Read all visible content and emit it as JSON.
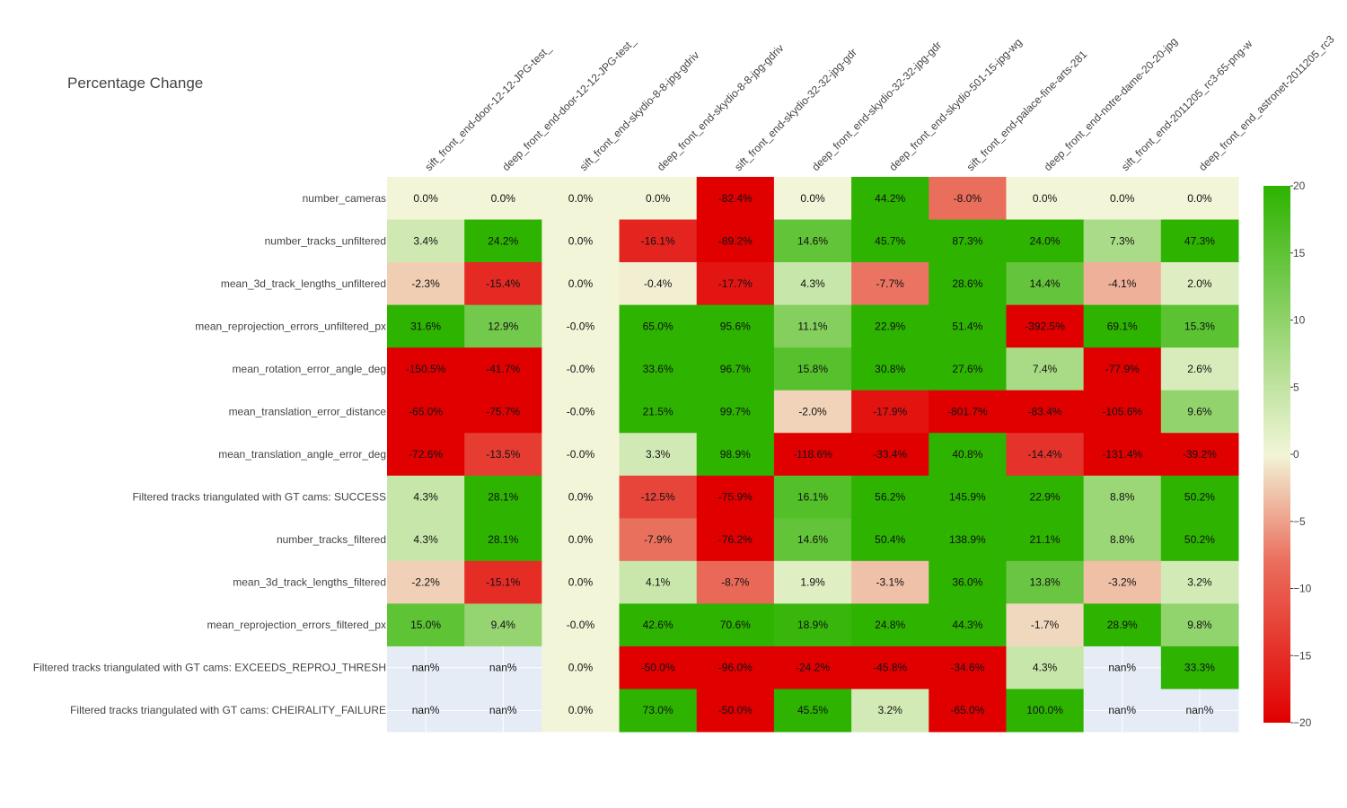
{
  "chart_data": {
    "type": "heatmap",
    "title": "Percentage Change",
    "columns": [
      "sift_front_end-door-12-12-JPG-test_",
      "deep_front_end-door-12-12-JPG-test_",
      "sift_front_end-skydio-8-8-jpg-gdriv",
      "deep_front_end-skydio-8-8-jpg-gdriv",
      "sift_front_end-skydio-32-32-jpg-gdr",
      "deep_front_end-skydio-32-32-jpg-gdr",
      "deep_front_end-skydio-501-15-jpg-wg",
      "sift_front_end-palace-fine-arts-281",
      "deep_front_end-notre-dame-20-20-jpg",
      "sift_front_end-2011205_rc3-65-png-w",
      "deep_front_end_astronet-2011205_rc3"
    ],
    "rows": [
      "number_cameras",
      "number_tracks_unfiltered",
      "mean_3d_track_lengths_unfiltered",
      "mean_reprojection_errors_unfiltered_px",
      "mean_rotation_error_angle_deg",
      "mean_translation_error_distance",
      "mean_translation_angle_error_deg",
      "Filtered tracks triangulated with GT cams: SUCCESS",
      "number_tracks_filtered",
      "mean_3d_track_lengths_filtered",
      "mean_reprojection_errors_filtered_px",
      "Filtered tracks triangulated with GT cams: EXCEEDS_REPROJ_THRESH",
      "Filtered tracks triangulated with GT cams: CHEIRALITY_FAILURE"
    ],
    "values": [
      [
        0.0,
        0.0,
        0.0,
        0.0,
        -82.4,
        0.0,
        44.2,
        -8.0,
        0.0,
        0.0,
        0.0
      ],
      [
        3.4,
        24.2,
        0.0,
        -16.1,
        -89.2,
        14.6,
        45.7,
        87.3,
        24.0,
        7.3,
        47.3
      ],
      [
        -2.3,
        -15.4,
        0.0,
        -0.4,
        -17.7,
        4.3,
        -7.7,
        28.6,
        14.4,
        -4.1,
        2.0
      ],
      [
        31.6,
        12.9,
        -0.0,
        65.0,
        95.6,
        11.1,
        22.9,
        51.4,
        -392.5,
        69.1,
        15.3
      ],
      [
        -150.5,
        -41.7,
        -0.0,
        33.6,
        96.7,
        15.8,
        30.8,
        27.6,
        7.4,
        -77.9,
        2.6
      ],
      [
        -65.0,
        -75.7,
        -0.0,
        21.5,
        99.7,
        -2.0,
        -17.9,
        -801.7,
        -83.4,
        -105.6,
        9.6
      ],
      [
        -72.6,
        -13.5,
        -0.0,
        3.3,
        98.9,
        -118.6,
        -33.4,
        40.8,
        -14.4,
        -131.4,
        -39.2
      ],
      [
        4.3,
        28.1,
        0.0,
        -12.5,
        -75.9,
        16.1,
        56.2,
        145.9,
        22.9,
        8.8,
        50.2
      ],
      [
        4.3,
        28.1,
        0.0,
        -7.9,
        -76.2,
        14.6,
        50.4,
        138.9,
        21.1,
        8.8,
        50.2
      ],
      [
        -2.2,
        -15.1,
        0.0,
        4.1,
        -8.7,
        1.9,
        -3.1,
        36.0,
        13.8,
        -3.2,
        3.2
      ],
      [
        15.0,
        9.4,
        -0.0,
        42.6,
        70.6,
        18.9,
        24.8,
        44.3,
        -1.7,
        28.9,
        9.8
      ],
      [
        null,
        null,
        0.0,
        -50.0,
        -96.0,
        -24.2,
        -45.8,
        -34.6,
        4.3,
        null,
        33.3
      ],
      [
        null,
        null,
        0.0,
        73.0,
        -50.0,
        45.5,
        3.2,
        -65.0,
        100.0,
        null,
        null
      ]
    ],
    "cell_text": [
      [
        "0.0%",
        "0.0%",
        "0.0%",
        "0.0%",
        "-82.4%",
        "0.0%",
        "44.2%",
        "-8.0%",
        "0.0%",
        "0.0%",
        "0.0%"
      ],
      [
        "3.4%",
        "24.2%",
        "0.0%",
        "-16.1%",
        "-89.2%",
        "14.6%",
        "45.7%",
        "87.3%",
        "24.0%",
        "7.3%",
        "47.3%"
      ],
      [
        "-2.3%",
        "-15.4%",
        "0.0%",
        "-0.4%",
        "-17.7%",
        "4.3%",
        "-7.7%",
        "28.6%",
        "14.4%",
        "-4.1%",
        "2.0%"
      ],
      [
        "31.6%",
        "12.9%",
        "-0.0%",
        "65.0%",
        "95.6%",
        "11.1%",
        "22.9%",
        "51.4%",
        "-392.5%",
        "69.1%",
        "15.3%"
      ],
      [
        "-150.5%",
        "-41.7%",
        "-0.0%",
        "33.6%",
        "96.7%",
        "15.8%",
        "30.8%",
        "27.6%",
        "7.4%",
        "-77.9%",
        "2.6%"
      ],
      [
        "-65.0%",
        "-75.7%",
        "-0.0%",
        "21.5%",
        "99.7%",
        "-2.0%",
        "-17.9%",
        "-801.7%",
        "-83.4%",
        "-105.6%",
        "9.6%"
      ],
      [
        "-72.6%",
        "-13.5%",
        "-0.0%",
        "3.3%",
        "98.9%",
        "-118.6%",
        "-33.4%",
        "40.8%",
        "-14.4%",
        "-131.4%",
        "-39.2%"
      ],
      [
        "4.3%",
        "28.1%",
        "0.0%",
        "-12.5%",
        "-75.9%",
        "16.1%",
        "56.2%",
        "145.9%",
        "22.9%",
        "8.8%",
        "50.2%"
      ],
      [
        "4.3%",
        "28.1%",
        "0.0%",
        "-7.9%",
        "-76.2%",
        "14.6%",
        "50.4%",
        "138.9%",
        "21.1%",
        "8.8%",
        "50.2%"
      ],
      [
        "-2.2%",
        "-15.1%",
        "0.0%",
        "4.1%",
        "-8.7%",
        "1.9%",
        "-3.1%",
        "36.0%",
        "13.8%",
        "-3.2%",
        "3.2%"
      ],
      [
        "15.0%",
        "9.4%",
        "-0.0%",
        "42.6%",
        "70.6%",
        "18.9%",
        "24.8%",
        "44.3%",
        "-1.7%",
        "28.9%",
        "9.8%"
      ],
      [
        "nan%",
        "nan%",
        "0.0%",
        "-50.0%",
        "-96.0%",
        "-24.2%",
        "-45.8%",
        "-34.6%",
        "4.3%",
        "nan%",
        "33.3%"
      ],
      [
        "nan%",
        "nan%",
        "0.0%",
        "73.0%",
        "-50.0%",
        "45.5%",
        "3.2%",
        "-65.0%",
        "100.0%",
        "nan%",
        "nan%"
      ]
    ],
    "colorscale": {
      "zmin": -20,
      "zmax": 20,
      "ticks": [
        20,
        15,
        10,
        5,
        0,
        -5,
        -10,
        -15,
        -20
      ],
      "tick_labels": [
        "20",
        "15",
        "10",
        "5",
        "0",
        "−5",
        "−10",
        "−15",
        "−20"
      ],
      "stops": [
        [
          0.0,
          "#e10000"
        ],
        [
          0.3,
          "#ea6e5c"
        ],
        [
          0.5,
          "#f2f5d8"
        ],
        [
          0.75,
          "#8fd26a"
        ],
        [
          1.0,
          "#2db300"
        ]
      ],
      "nan_color": "#e5ecf6"
    },
    "legend_position": "right"
  }
}
